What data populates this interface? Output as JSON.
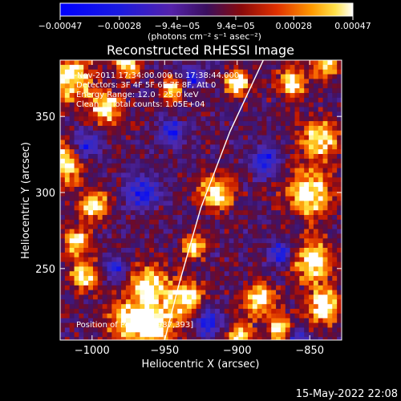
{
  "chart_data": {
    "type": "heatmap",
    "title": "Reconstructed RHESSI Image",
    "xlabel": "Heliocentric X (arcsec)",
    "ylabel": "Heliocentric Y (arcsec)",
    "xlim": [
      -1022,
      -828
    ],
    "ylim": [
      203,
      387
    ],
    "xticks": [
      -1000,
      -950,
      -900,
      -850
    ],
    "xtick_labels": [
      "−1000",
      "−950",
      "−900",
      "−850"
    ],
    "yticks": [
      250,
      300,
      350
    ],
    "ytick_labels": [
      "250",
      "300",
      "350"
    ],
    "colorbar": {
      "unit_label": "(photons cm⁻² s⁻¹ asec⁻²)",
      "range": [
        -0.00047,
        0.00047
      ],
      "ticks": [
        -0.00047,
        -0.00028,
        -9.4e-05,
        9.4e-05,
        0.00028,
        0.00047
      ],
      "tick_labels": [
        "−0.00047",
        "−0.00028",
        "−9.4e−05",
        "9.4e−05",
        "0.00028",
        "0.00047"
      ]
    },
    "annotations": [
      "5-Nov-2011 17:34:00.000 to 17:38:44.000",
      "Detectors: 3F 4F 5F 6F 7F 8F, Att 0",
      "Energy Range: 12.0 - 25.0 keV",
      "Clean     Total counts: 1.05E+04"
    ],
    "peak_label": "Position of Peak = [-987,393]",
    "peak_position": [
      -987,
      393
    ],
    "limb_curve": [
      [
        -950,
        203
      ],
      [
        -940,
        240
      ],
      [
        -925,
        290
      ],
      [
        -905,
        340
      ],
      [
        -882,
        387
      ]
    ],
    "hot_regions": [
      [
        -1015,
        375,
        16
      ],
      [
        -1018,
        320,
        13
      ],
      [
        -990,
        355,
        11
      ],
      [
        -998,
        292,
        10
      ],
      [
        -1010,
        268,
        9
      ],
      [
        -1005,
        245,
        10
      ],
      [
        -960,
        238,
        14
      ],
      [
        -935,
        230,
        12
      ],
      [
        -975,
        215,
        14
      ],
      [
        -955,
        212,
        13
      ],
      [
        -915,
        300,
        12
      ],
      [
        -930,
        265,
        8
      ],
      [
        -885,
        230,
        11
      ],
      [
        -898,
        205,
        9
      ],
      [
        -850,
        300,
        16
      ],
      [
        -843,
        335,
        13
      ],
      [
        -848,
        255,
        14
      ],
      [
        -840,
        225,
        12
      ],
      [
        -870,
        210,
        9
      ],
      [
        -862,
        372,
        10
      ],
      [
        -900,
        372,
        9
      ],
      [
        -945,
        368,
        8
      ],
      [
        -975,
        385,
        9
      ],
      [
        -838,
        385,
        9
      ]
    ],
    "cold_regions": [
      [
        -1005,
        330,
        9
      ],
      [
        -965,
        300,
        10
      ],
      [
        -945,
        340,
        8
      ],
      [
        -880,
        320,
        9
      ],
      [
        -870,
        260,
        8
      ],
      [
        -985,
        250,
        7
      ],
      [
        -920,
        215,
        9
      ],
      [
        -860,
        205,
        7
      ],
      [
        -930,
        375,
        7
      ]
    ]
  },
  "footer": {
    "timestamp": "15-May-2022 22:08"
  }
}
